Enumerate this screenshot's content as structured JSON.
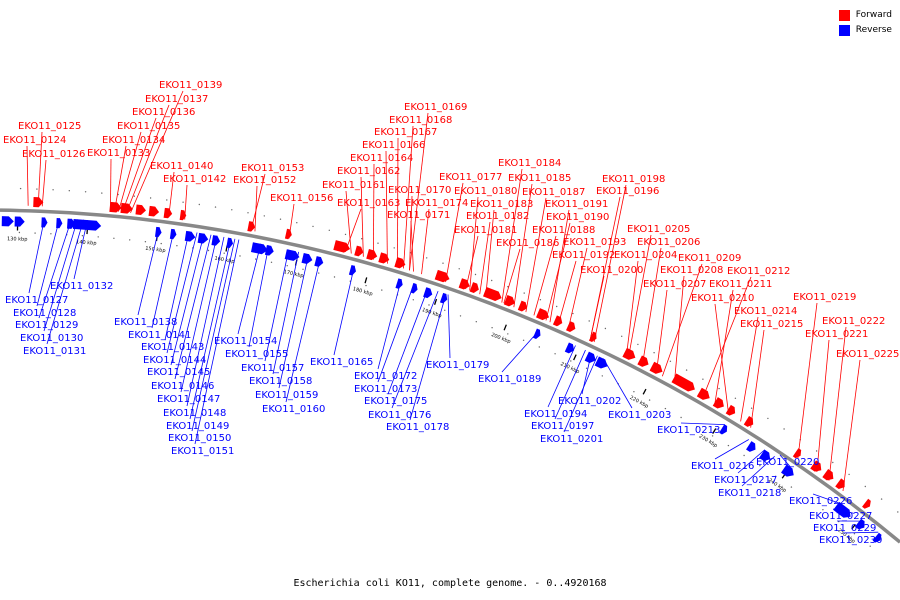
{
  "caption": "Escherichia coli KO11, complete genome. - 0..4920168",
  "legend": [
    {
      "label": "Forward",
      "color": "#ff0000"
    },
    {
      "label": "Reverse",
      "color": "#0000ff"
    }
  ],
  "colors": {
    "forward": "#ff0000",
    "reverse": "#0000ff",
    "backbone": "#888888"
  },
  "ticks": [
    "130 kbp",
    "140 kbp",
    "150 kbp",
    "160 kbp",
    "170 kbp",
    "180 kbp",
    "190 kbp",
    "200 kbp",
    "210 kbp",
    "220 kbp",
    "230 kbp",
    "240 kbp",
    "250 kbp"
  ],
  "forward_labels": [
    "EKO11_0125",
    "EKO11_0124",
    "EKO11_0126",
    "EKO11_0139",
    "EKO11_0137",
    "EKO11_0136",
    "EKO11_0135",
    "EKO11_0134",
    "EKO11_0133",
    "EKO11_0140",
    "EKO11_0142",
    "EKO11_0153",
    "EKO11_0152",
    "EKO11_0156",
    "EKO11_0169",
    "EKO11_0168",
    "EKO11_0167",
    "EKO11_0166",
    "EKO11_0164",
    "EKO11_0162",
    "EKO11_0161",
    "EKO11_0163",
    "EKO11_0170",
    "EKO11_0174",
    "EKO11_0171",
    "EKO11_0177",
    "EKO11_0180",
    "EKO11_0183",
    "EKO11_0182",
    "EKO11_0181",
    "EKO11_0184",
    "EKO11_0185",
    "EKO11_0187",
    "EKO11_0191",
    "EKO11_0190",
    "EKO11_0188",
    "EKO11_0186",
    "EKO11_0193",
    "EKO11_0192",
    "EKO11_0200",
    "EKO11_0198",
    "EKO11_0196",
    "EKO11_0205",
    "EKO11_0206",
    "EKO11_0204",
    "EKO11_0209",
    "EKO11_0208",
    "EKO11_0207",
    "EKO11_0212",
    "EKO11_0211",
    "EKO11_0210",
    "EKO11_0214",
    "EKO11_0215",
    "EKO11_0219",
    "EKO11_0222",
    "EKO11_0221",
    "EKO11_0225"
  ],
  "reverse_labels": [
    "EKO11_0127",
    "EKO11_0132",
    "EKO11_0128",
    "EKO11_0129",
    "EKO11_0130",
    "EKO11_0131",
    "EKO11_0138",
    "EKO11_0141",
    "EKO11_0143",
    "EKO11_0144",
    "EKO11_0145",
    "EKO11_0146",
    "EKO11_0147",
    "EKO11_0148",
    "EKO11_0149",
    "EKO11_0150",
    "EKO11_0151",
    "EKO11_0154",
    "EKO11_0155",
    "EKO11_0157",
    "EKO11_0158",
    "EKO11_0159",
    "EKO11_0160",
    "EKO11_0165",
    "EKO11_0172",
    "EKO11_0173",
    "EKO11_0175",
    "EKO11_0176",
    "EKO11_0178",
    "EKO11_0179",
    "EKO11_0189",
    "EKO11_0194",
    "EKO11_0197",
    "EKO11_0201",
    "EKO11_0202",
    "EKO11_0203",
    "EKO11_0213",
    "EKO11_0216",
    "EKO11_0217",
    "EKO11_0218",
    "EKO11_0220",
    "EKO11_0226",
    "EKO11_0227",
    "EKO11_0229",
    "EKO11_0230"
  ]
}
